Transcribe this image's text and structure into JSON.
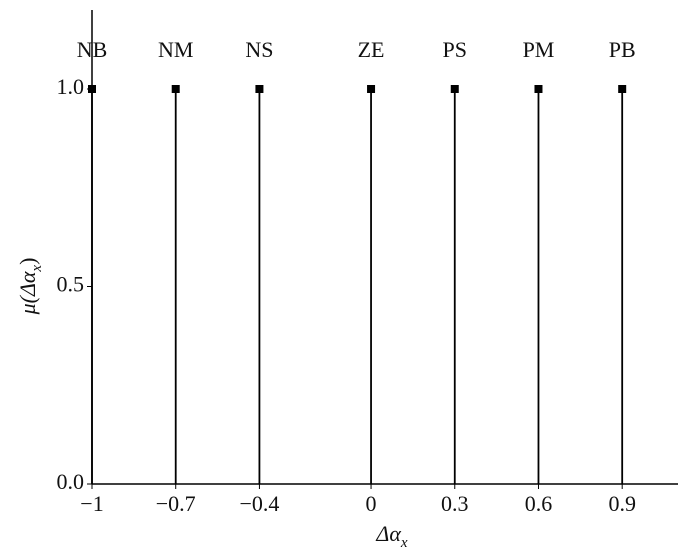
{
  "chart_data": {
    "type": "stem",
    "xlabel": {
      "main": "Δα",
      "sub": "x"
    },
    "ylabel": {
      "main": "μ(Δα",
      "sub": "x",
      "end": ")"
    },
    "categories": [
      "NB",
      "NM",
      "NS",
      "ZE",
      "PS",
      "PM",
      "PB"
    ],
    "x": [
      -1,
      -0.7,
      -0.4,
      0,
      0.3,
      0.6,
      0.9
    ],
    "values": [
      1,
      1,
      1,
      1,
      1,
      1,
      1
    ],
    "color": "#000000",
    "xlim": [
      -1,
      1.1
    ],
    "ylim": [
      0,
      1.2
    ],
    "xticks": [
      {
        "value": -1,
        "label": "−1"
      },
      {
        "value": -0.7,
        "label": "−0.7"
      },
      {
        "value": -0.4,
        "label": "−0.4"
      },
      0,
      0.3,
      0.6,
      0.9
    ],
    "yticks": [
      {
        "value": 0,
        "label": "0.0"
      },
      0.5,
      {
        "value": 1,
        "label": "1.0"
      }
    ]
  }
}
